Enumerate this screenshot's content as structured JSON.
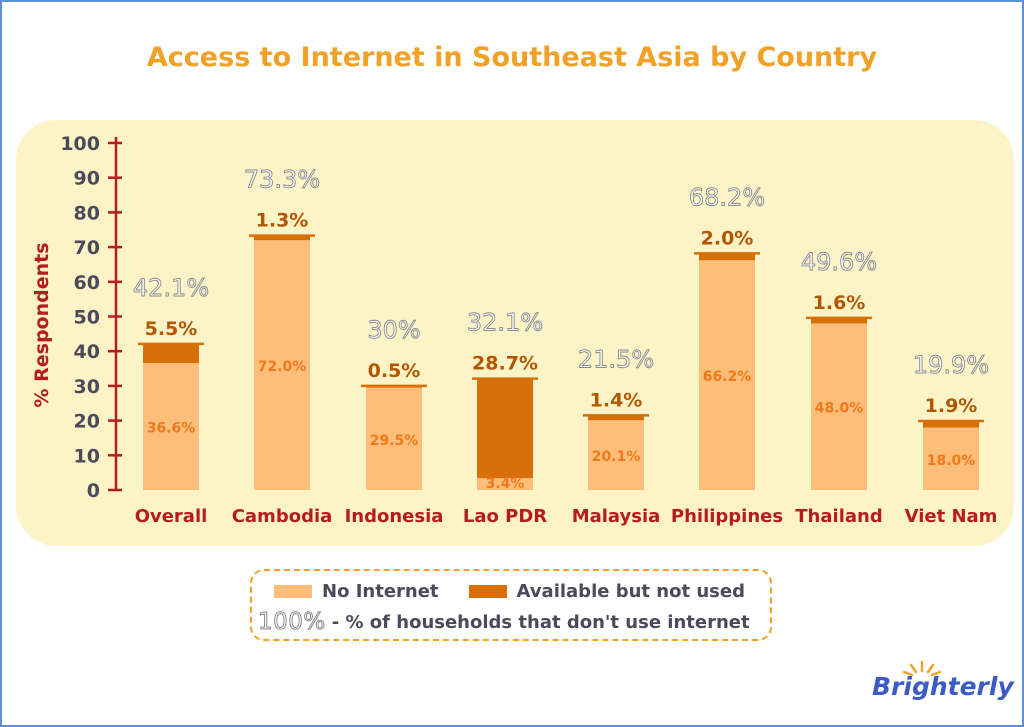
{
  "colors": {
    "accent": "#f0a126",
    "axis": "#b71c1c",
    "no_internet": "#ffbd7a",
    "available_not_used": "#d7700a",
    "panel": "#fcf3c7",
    "brand": "#3d5bc4"
  },
  "brand": {
    "name": "Brighterly",
    "icon": "sun-rays-icon"
  },
  "legend": {
    "no_internet": "No Internet",
    "available_not_used": "Available but not used",
    "hundred_prefix": "100%",
    "hundred_desc": "- % of households that don't use internet"
  },
  "chart_data": {
    "type": "bar",
    "stacked": true,
    "title": "Access to Internet in Southeast Asia by Country",
    "xlabel": "",
    "ylabel": "% Respondents",
    "ylim": [
      0,
      100
    ],
    "yticks": [
      0,
      10,
      20,
      30,
      40,
      50,
      60,
      70,
      80,
      90,
      100
    ],
    "grid": false,
    "legend_position": "bottom",
    "categories": [
      "Overall",
      "Cambodia",
      "Indonesia",
      "Lao PDR",
      "Malaysia",
      "Philippines",
      "Thailand",
      "Viet Nam"
    ],
    "series": [
      {
        "name": "No Internet",
        "values": [
          36.6,
          72.0,
          29.5,
          3.4,
          20.1,
          66.2,
          48.0,
          18.0
        ],
        "labels": [
          "36.6%",
          "72.0%",
          "29.5%",
          "3.4%",
          "20.1%",
          "66.2%",
          "48.0%",
          "18.0%"
        ]
      },
      {
        "name": "Available but not used",
        "values": [
          5.5,
          1.3,
          0.5,
          28.7,
          1.4,
          2.0,
          1.6,
          1.9
        ],
        "labels": [
          "5.5%",
          "1.3%",
          "0.5%",
          "28.7%",
          "1.4%",
          "2.0%",
          "1.6%",
          "1.9%"
        ]
      }
    ],
    "totals": [
      42.1,
      73.3,
      30,
      32.1,
      21.5,
      68.2,
      49.6,
      19.9
    ],
    "total_labels": [
      "42.1%",
      "73.3%",
      "30%",
      "32.1%",
      "21.5%",
      "68.2%",
      "49.6%",
      "19.9%"
    ]
  }
}
